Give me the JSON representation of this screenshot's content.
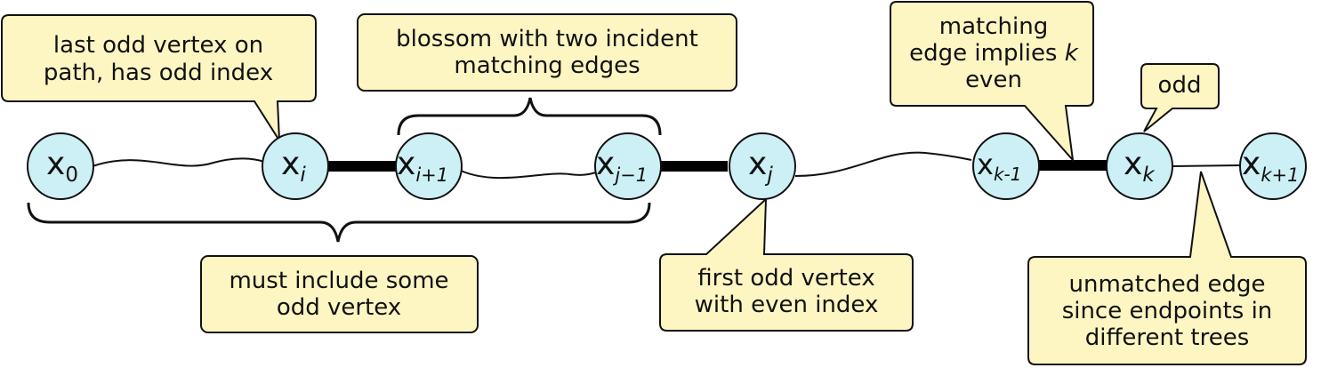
{
  "vertices": [
    {
      "id": "x0",
      "base": "x",
      "sub": "0"
    },
    {
      "id": "xi",
      "base": "x",
      "sub": "i"
    },
    {
      "id": "xi1",
      "base": "x",
      "sub": "i+1"
    },
    {
      "id": "xj1",
      "base": "x",
      "sub": "j−1"
    },
    {
      "id": "xj",
      "base": "x",
      "sub": "j"
    },
    {
      "id": "xk1",
      "base": "x",
      "sub": "k-1"
    },
    {
      "id": "xk",
      "base": "x",
      "sub": "k"
    },
    {
      "id": "xk2",
      "base": "x",
      "sub": "k+1"
    }
  ],
  "callouts": {
    "last_odd": [
      "last odd vertex on",
      "path, has odd index"
    ],
    "blossom": [
      "blossom with two incident",
      "matching edges"
    ],
    "matching_k": [
      "matching",
      "edge implies k",
      "even"
    ],
    "odd": [
      "odd"
    ],
    "must": [
      "must include some",
      "odd vertex"
    ],
    "first_odd": [
      "first odd vertex",
      "with even index"
    ],
    "unmatched": [
      "unmatched edge",
      "since endpoints in",
      "different trees"
    ]
  },
  "colors": {
    "vertex_fill": "#ccf0f5",
    "callout_fill": "#fdf6c3",
    "stroke": "#111111"
  }
}
